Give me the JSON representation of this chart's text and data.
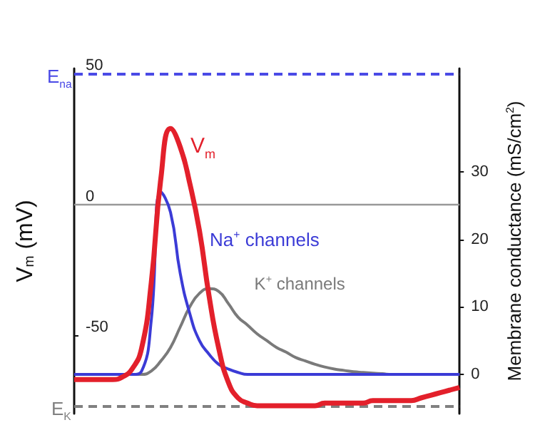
{
  "chart_data": {
    "type": "line",
    "ylabel": "V$_{m}$ (mV)",
    "y2label": "Membrane conductance (mS/cm$^{2}$)",
    "categories": [
      null,
      null,
      null,
      null,
      null,
      null,
      null,
      null,
      null,
      null,
      null,
      null,
      null,
      null,
      null,
      null,
      null,
      null,
      null,
      null,
      null,
      null,
      null,
      null,
      null,
      null,
      null,
      null,
      null,
      null,
      null,
      null,
      null,
      null,
      null,
      null,
      null,
      null,
      null,
      null,
      null
    ],
    "ylim": [
      -80,
      52
    ],
    "yticks": [
      -50,
      0,
      50
    ],
    "y2lim": [
      -5.8,
      45.3
    ],
    "y2ticks": [
      0,
      10,
      20,
      30
    ],
    "tick_labels": "y",
    "grid": false,
    "legend": false,
    "marker": "none",
    "line_style": "solid",
    "series": [
      {
        "name": "V$_{m}$",
        "color": "#e3202b",
        "values": [
          -67,
          -67,
          -67,
          -67,
          -67,
          -66,
          -63,
          -55,
          -30,
          10,
          29,
          22,
          8,
          -10,
          -35,
          -55,
          -68,
          -74,
          -76,
          -77,
          -77,
          -77,
          -77,
          -77,
          -77,
          -77,
          -76,
          -76,
          -76,
          -76,
          -76,
          -75,
          -75,
          -75,
          -75,
          -75,
          -74,
          -73,
          -72,
          -71,
          -70
        ]
      },
      {
        "name": "Na$^{+}$ channels",
        "color": "#3b3bd6",
        "axis": "y2",
        "values": [
          0,
          0,
          0,
          0,
          0,
          0,
          0,
          0.5,
          8,
          27,
          24,
          15,
          9,
          5,
          3,
          1.5,
          0.8,
          0.3,
          0,
          0,
          0,
          0,
          0,
          0,
          0,
          0,
          0,
          0,
          0,
          0,
          0,
          0,
          0,
          0,
          0,
          0,
          0,
          0,
          0,
          0,
          0
        ]
      },
      {
        "name": "K$^{+}$ channels",
        "color": "#7a7a7a",
        "axis": "y2",
        "values": [
          0,
          0,
          0,
          0,
          0,
          0,
          0,
          0,
          0.5,
          2,
          4,
          7,
          10,
          12,
          12.7,
          12.3,
          10.5,
          8.5,
          7.3,
          6,
          5,
          4,
          3.3,
          2.5,
          2,
          1.5,
          1.1,
          0.8,
          0.6,
          0.4,
          0.3,
          0.2,
          0.1,
          0,
          0,
          0,
          0,
          0,
          0,
          0,
          0
        ]
      }
    ],
    "ref_lines": [
      {
        "axis": "y",
        "value": 50,
        "label": "E$_{na}$",
        "color": "#4a4ae6",
        "line_style": "dashed"
      },
      {
        "axis": "y",
        "value": -77,
        "label": "E$_{K}$",
        "color": "#808080",
        "line_style": "dashed"
      },
      {
        "axis": "y",
        "value": 0,
        "color": "#999999",
        "line_style": "solid"
      }
    ]
  }
}
